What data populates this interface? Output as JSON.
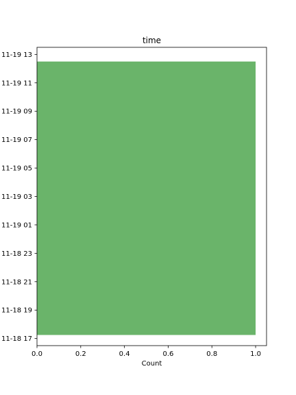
{
  "chart_data": {
    "type": "bar",
    "orientation": "horizontal",
    "title": "time",
    "xlabel": "Count",
    "ylabel": "",
    "xlim": [
      0.0,
      1.05
    ],
    "xticks": [
      0.0,
      0.2,
      0.4,
      0.6,
      0.8,
      1.0
    ],
    "xtick_labels": [
      "0.0",
      "0.2",
      "0.4",
      "0.6",
      "0.8",
      "1.0"
    ],
    "ylim": [
      "2023-11-18 16:30",
      "2023-11-19 13:30"
    ],
    "yticks": [
      "2023-11-18 17:00",
      "2023-11-18 19:00",
      "2023-11-18 21:00",
      "2023-11-18 23:00",
      "2023-11-19 01:00",
      "2023-11-19 03:00",
      "2023-11-19 05:00",
      "2023-11-19 07:00",
      "2023-11-19 09:00",
      "2023-11-19 11:00",
      "2023-11-19 13:00"
    ],
    "ytick_labels": [
      "11-18 17",
      "11-18 19",
      "11-18 21",
      "11-18 23",
      "11-19 01",
      "11-19 03",
      "11-19 05",
      "11-19 07",
      "11-19 09",
      "11-19 11",
      "11-19 13"
    ],
    "bins": [
      {
        "start": "2023-11-18 17:15",
        "end": "2023-11-19 12:30",
        "count": 1
      }
    ],
    "bar_color": "#6ab46a",
    "grid": false,
    "legend": "none"
  }
}
